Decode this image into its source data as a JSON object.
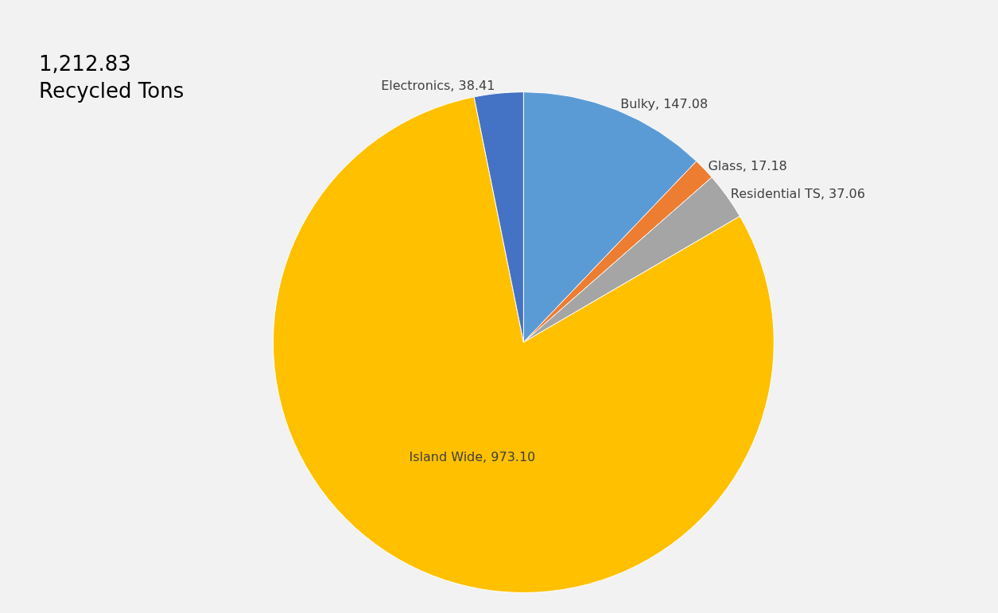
{
  "chart_data": {
    "type": "pie",
    "title": "1,212.83\nRecycled Tons",
    "categories": [
      "Bulky",
      "Glass",
      "Residential TS",
      "Island Wide",
      "Electronics"
    ],
    "values": [
      147.08,
      17.18,
      37.06,
      973.1,
      38.41
    ],
    "value_labels": [
      "147.08",
      "17.18",
      "37.06",
      "973.10",
      "38.41"
    ],
    "colors": [
      "#5b9bd5",
      "#ed7d31",
      "#a5a5a5",
      "#ffc000",
      "#4472c4"
    ],
    "legend": false
  }
}
